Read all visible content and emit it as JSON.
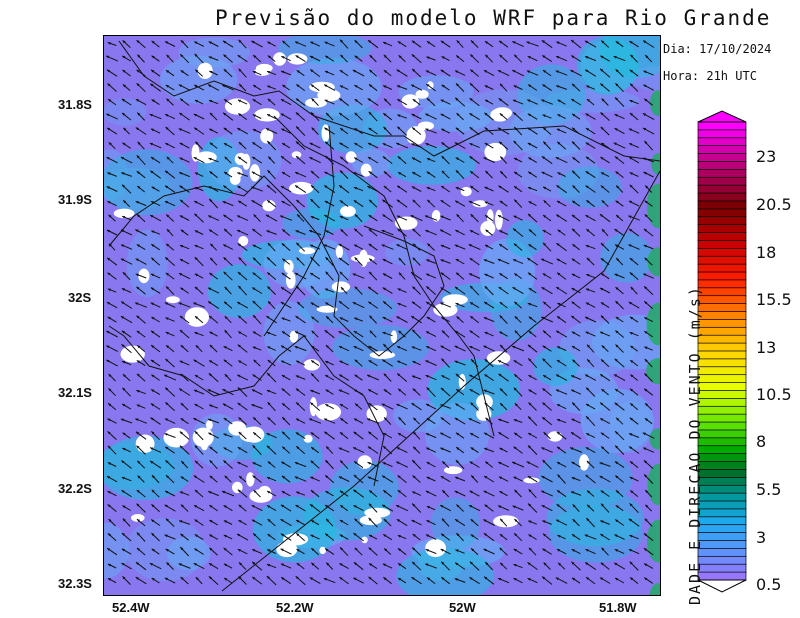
{
  "title": "Previsão do modelo WRF para Rio Grande",
  "info": {
    "date": "Dia: 17/10/2024",
    "time": "Hora: 21h UTC"
  },
  "axes": {
    "lat_labels": [
      "31.8S",
      "31.9S",
      "32S",
      "32.1S",
      "32.2S",
      "32.3S"
    ],
    "lon_labels": [
      "52.4W",
      "52.2W",
      "52W",
      "51.8W"
    ]
  },
  "colorbar": {
    "title": "DADE E DIRECAO DO VENTO (m/s)",
    "labels": [
      "23",
      "20.5",
      "18",
      "15.5",
      "13",
      "10.5",
      "8",
      "5.5",
      "3",
      "0.5"
    ],
    "colors": {
      "field_low": "#8877ee",
      "field_mid": "#66aaf5",
      "field_high": "#22bbdd",
      "coast_green": "#22aa66",
      "blank": "#ffffff"
    }
  },
  "field": {
    "dominant_wind_direction": "from southeast",
    "speed_range_m_s": "0.5 – 5.5"
  }
}
